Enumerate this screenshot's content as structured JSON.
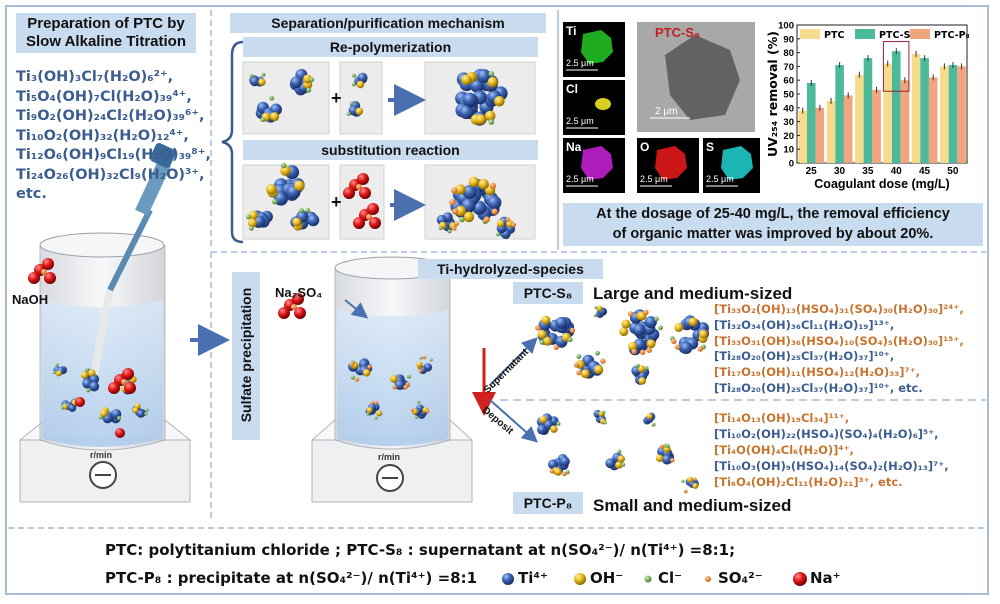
{
  "prep": {
    "title_line1": "Preparation of PTC by",
    "title_line2": "Slow Alkaline Titration",
    "formulas": [
      "Ti₃(OH)₃Cl₇(H₂O)₆²⁺,",
      "Ti₅O₄(OH)₇Cl(H₂O)₃₉⁴⁺,",
      "Ti₉O₂(OH)₂₄Cl₂(H₂O)₃₉⁶⁺,",
      "Ti₁₀O₂(OH)₃₂(H₂O)₁₂⁴⁺,",
      "Ti₁₂O₆(OH)₉Cl₁₉(H₂O)₃₉⁸⁺,",
      "Ti₂₄O₂₆(OH)₃₂Cl₉(H₂O)³⁺,",
      "etc."
    ],
    "naoh": "NaOH",
    "stirrer": "r/min"
  },
  "mechanism": {
    "title": "Separation/purification mechanism",
    "repoly": "Re-polymerization",
    "subst": "substitution reaction",
    "plus": "+"
  },
  "eds": {
    "panels": [
      "Ti",
      "Cl",
      "Na",
      "O",
      "S"
    ],
    "scale_small": "2.5 μm",
    "tem_label": "PTC-S₈",
    "tem_scale": "2 μm",
    "colors": {
      "Ti": "#22c022",
      "Cl": "#d8d020",
      "Na": "#c020d0",
      "O": "#e01818",
      "S": "#20c8c8"
    }
  },
  "chart_data": {
    "type": "bar",
    "categories": [
      "25",
      "30",
      "35",
      "40",
      "45",
      "50"
    ],
    "series": [
      {
        "name": "PTC",
        "values": [
          38,
          45,
          64,
          72,
          79,
          70
        ],
        "color": "#f5dc8c"
      },
      {
        "name": "PTC-S₈",
        "values": [
          58,
          71,
          76,
          81,
          76,
          71
        ],
        "color": "#4db99b"
      },
      {
        "name": "PTC-P₈",
        "values": [
          40,
          49,
          53,
          60,
          62,
          70
        ],
        "color": "#f0a57f"
      }
    ],
    "xlabel": "Coagulant dose (mg/L)",
    "ylabel": "UV₂₅₄ removal (%)",
    "ylim": [
      0,
      100
    ],
    "yticks": [
      "0",
      "10",
      "20",
      "30",
      "40",
      "50",
      "60",
      "70",
      "80",
      "90",
      "100"
    ],
    "legend": "top",
    "highlight_category": "40"
  },
  "caption": {
    "line1": "At the dosage of 25-40 mg/L, the removal efficiency",
    "line2": "of organic matter was improved by about 20%."
  },
  "lower": {
    "sulfate": "Sulfate precipitation",
    "na2so4": "Na₂SO₄",
    "stirrer": "r/min",
    "species_title": "Ti-hydrolyzed-species",
    "supernatant": "Supernatant",
    "deposit": "Deposit",
    "s8_label": "PTC-S₈",
    "s8_size": "Large and medium-sized",
    "s8_formulas": [
      "[Ti₃₃O₂(OH)₁₃(HSO₄)₃₁(SO₄)₃₀(H₂O)₃₀]²⁴⁺,",
      "[Ti₃₂O₃₄(OH)₃₆Cl₁₁(H₂O)₁₉]¹³⁺,",
      "[Ti₃₃O₃₁(OH)₃₆(HSO₄)₁₀(SO₄)₅(H₂O)₃₀]¹⁵⁺,",
      "[Ti₂₈O₂₀(OH)₂₅Cl₃₇(H₂O)₃₇]¹⁰⁺,",
      "[Ti₁₇O₁₉(OH)₁₁(HSO₄)₁₂(H₂O)₃₃]⁷⁺,",
      "[Ti₂₈O₂₀(OH)₂₅Cl₃₇(H₂O)₃₇]¹⁰⁺, etc."
    ],
    "p8_label": "PTC-P₈",
    "p8_size": "Small and medium-sized",
    "p8_formulas": [
      "[Ti₁₄O₁₃(OH)₁₉Cl₃₄]¹¹⁺,",
      "[Ti₁₀O₂(OH)₂₂(HSO₄)(SO₄)₄(H₂O)₆]⁵⁺,",
      "[Ti₄O(OH)₄Cl₆(H₂O)]⁴⁺,",
      "[Ti₁₀O₃(OH)₉(HSO₄)₁₄(SO₄)₂(H₂O)₁₃]⁷⁺,",
      "[Ti₆O₄(OH)₂Cl₁₁(H₂O)₂₁]³⁺, etc."
    ]
  },
  "footer": {
    "line1": "PTC:  polytitanium chloride ; PTC-S₈ : supernatant at n(SO₄²⁻)/ n(Ti⁴⁺) =8:1;",
    "line2": "PTC-P₈ : precipitate at n(SO₄²⁻)/ n(Ti⁴⁺) =8:1",
    "legend": [
      {
        "label": "Ti⁴⁺",
        "color": "#3a62b0"
      },
      {
        "label": "OH⁻",
        "color": "#e8b820"
      },
      {
        "label": "Cl⁻",
        "color": "#6aa050"
      },
      {
        "label": "SO₄²⁻",
        "color": "#e07a30"
      },
      {
        "label": "Na⁺",
        "color": "#e01818"
      }
    ]
  }
}
